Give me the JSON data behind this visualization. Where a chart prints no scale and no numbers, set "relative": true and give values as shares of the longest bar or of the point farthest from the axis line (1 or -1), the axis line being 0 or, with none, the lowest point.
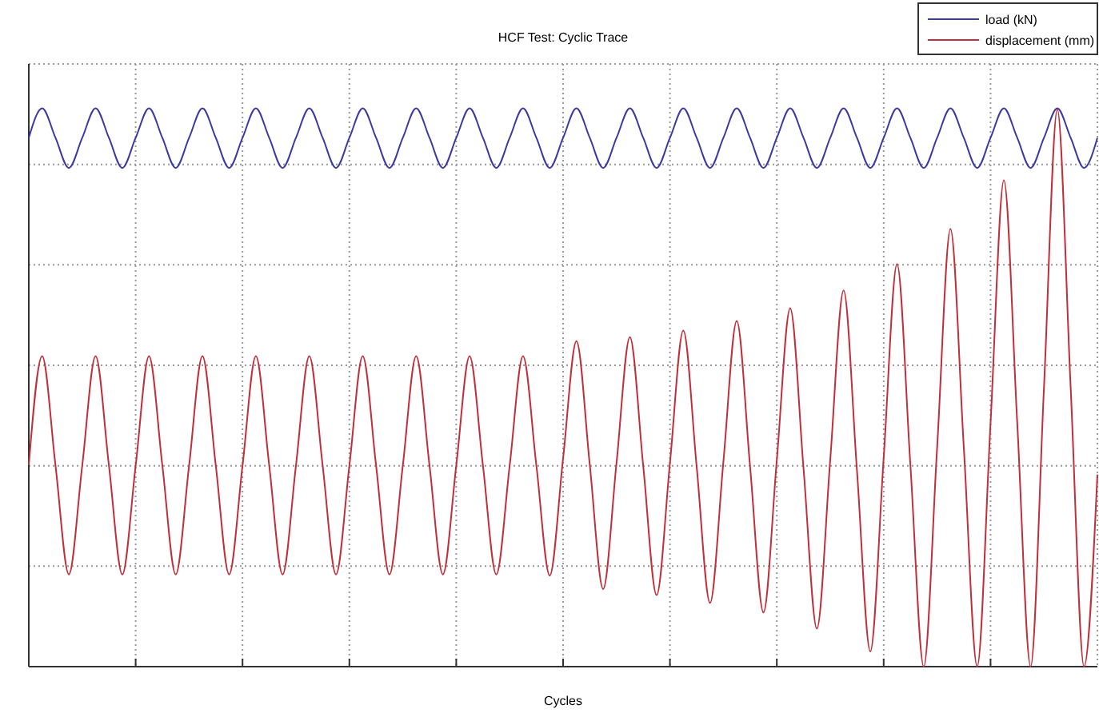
{
  "chart_data": {
    "type": "line",
    "title": "HCF Test: Cyclic Trace",
    "xlabel": "Cycles",
    "relative": true,
    "grid": true,
    "legend": "top right",
    "categories": [
      null,
      null,
      null,
      null,
      null,
      null,
      null,
      null,
      null,
      null,
      null,
      null,
      null,
      null,
      null,
      null,
      null,
      null,
      null,
      null,
      null,
      null,
      null,
      null,
      null,
      null,
      null,
      null,
      null,
      null,
      null,
      null,
      null,
      null,
      null,
      null,
      null,
      null,
      null,
      null,
      null,
      null,
      null,
      null,
      null,
      null,
      null,
      null,
      null,
      null,
      null,
      null,
      null,
      null,
      null,
      null,
      null,
      null,
      null,
      null,
      null,
      null,
      null,
      null,
      null,
      null,
      null,
      null,
      null,
      null,
      null,
      null,
      null,
      null,
      null,
      null,
      null,
      null,
      null,
      null,
      null
    ],
    "series": [
      {
        "name": "load (kN)",
        "color": "#3a3aa0",
        "values": [
          0.947,
          1,
          0.947,
          0.893,
          0.947,
          1,
          0.947,
          0.893,
          0.947,
          1,
          0.947,
          0.893,
          0.947,
          1,
          0.947,
          0.893,
          0.947,
          1,
          0.947,
          0.893,
          0.947,
          1,
          0.947,
          0.893,
          0.947,
          1,
          0.947,
          0.893,
          0.947,
          1,
          0.947,
          0.893,
          0.947,
          1,
          0.947,
          0.893,
          0.947,
          1,
          0.947,
          0.893,
          0.947,
          1,
          0.947,
          0.893,
          0.947,
          1,
          0.947,
          0.893,
          0.947,
          1,
          0.947,
          0.893,
          0.947,
          1,
          0.947,
          0.893,
          0.947,
          1,
          0.947,
          0.893,
          0.947,
          1,
          0.947,
          0.893,
          0.947,
          1,
          0.947,
          0.893,
          0.947,
          1,
          0.947,
          0.893,
          0.947,
          1,
          0.947,
          0.893,
          0.947,
          1,
          0.947,
          0.893,
          0.947
        ]
      },
      {
        "name": "displacement (mm)",
        "color": "#c0303a",
        "values": [
          0.361,
          0.556,
          0.36,
          0.165,
          0.36,
          0.556,
          0.36,
          0.165,
          0.36,
          0.556,
          0.36,
          0.165,
          0.36,
          0.556,
          0.36,
          0.165,
          0.36,
          0.556,
          0.36,
          0.165,
          0.36,
          0.556,
          0.36,
          0.165,
          0.36,
          0.556,
          0.36,
          0.165,
          0.36,
          0.556,
          0.36,
          0.165,
          0.36,
          0.556,
          0.36,
          0.165,
          0.36,
          0.556,
          0.36,
          0.163,
          0.373,
          0.583,
          0.361,
          0.139,
          0.365,
          0.59,
          0.359,
          0.128,
          0.365,
          0.602,
          0.358,
          0.114,
          0.367,
          0.619,
          0.358,
          0.097,
          0.37,
          0.642,
          0.355,
          0.068,
          0.371,
          0.674,
          0.351,
          0.027,
          0.374,
          0.721,
          0.361,
          0,
          0.392,
          0.784,
          0.392,
          0,
          0.436,
          0.871,
          0.436,
          0,
          0.499,
          0.998,
          0.499,
          0,
          0.344
        ]
      }
    ]
  }
}
